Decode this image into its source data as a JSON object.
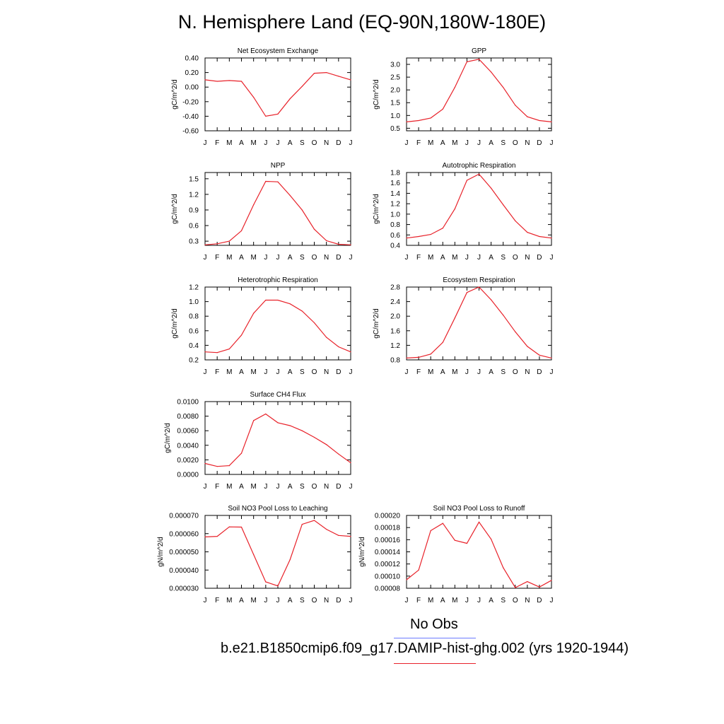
{
  "title": "N. Hemisphere Land (EQ-90N,180W-180E)",
  "colors": {
    "series_line": "#e8222a",
    "obs_line": "#6b7bff"
  },
  "legend": {
    "obs_label": "No Obs",
    "model_label": "b.e21.B1850cmip6.f09_g17.DAMIP-hist-ghg.002 (yrs 1920-1944)"
  },
  "chart_data": [
    {
      "type": "line",
      "title": "Net Ecosystem Exchange",
      "xlabel": "",
      "ylabel": "gC/m^2/d",
      "categories": [
        "J",
        "F",
        "M",
        "A",
        "M",
        "J",
        "J",
        "A",
        "S",
        "O",
        "N",
        "D",
        "J"
      ],
      "values": [
        0.1,
        0.08,
        0.09,
        0.08,
        -0.14,
        -0.4,
        -0.37,
        -0.16,
        0.01,
        0.19,
        0.2,
        0.15,
        0.1
      ],
      "ylim": [
        -0.6,
        0.4
      ],
      "yticks": [
        "0.40",
        "0.20",
        "0.00",
        "-0.20",
        "-0.40",
        "-0.60"
      ],
      "ytick_values": [
        0.4,
        0.2,
        0,
        -0.2,
        -0.4,
        -0.6
      ]
    },
    {
      "type": "line",
      "title": "GPP",
      "xlabel": "",
      "ylabel": "gC/m^2/d",
      "categories": [
        "J",
        "F",
        "M",
        "A",
        "M",
        "J",
        "J",
        "A",
        "S",
        "O",
        "N",
        "D",
        "J"
      ],
      "values": [
        0.75,
        0.8,
        0.9,
        1.25,
        2.1,
        3.1,
        3.2,
        2.7,
        2.1,
        1.4,
        0.95,
        0.8,
        0.75
      ],
      "ylim": [
        0.4,
        3.25
      ],
      "yticks": [
        "3.0",
        "2.5",
        "2.0",
        "1.5",
        "1.0",
        "0.5"
      ],
      "ytick_values": [
        3.0,
        2.5,
        2.0,
        1.5,
        1.0,
        0.5
      ]
    },
    {
      "type": "line",
      "title": "NPP",
      "xlabel": "",
      "ylabel": "gC/m^2/d",
      "categories": [
        "J",
        "F",
        "M",
        "A",
        "M",
        "J",
        "J",
        "A",
        "S",
        "O",
        "N",
        "D",
        "J"
      ],
      "values": [
        0.23,
        0.25,
        0.3,
        0.5,
        1.0,
        1.45,
        1.44,
        1.18,
        0.9,
        0.53,
        0.31,
        0.24,
        0.23
      ],
      "ylim": [
        0.22,
        1.62
      ],
      "yticks": [
        "1.5",
        "1.2",
        "0.9",
        "0.6",
        "0.3"
      ],
      "ytick_values": [
        1.5,
        1.2,
        0.9,
        0.6,
        0.3
      ]
    },
    {
      "type": "line",
      "title": "Autotrophic Respiration",
      "xlabel": "",
      "ylabel": "gC/m^2/d",
      "categories": [
        "J",
        "F",
        "M",
        "A",
        "M",
        "J",
        "J",
        "A",
        "S",
        "O",
        "N",
        "D",
        "J"
      ],
      "values": [
        0.54,
        0.57,
        0.61,
        0.73,
        1.1,
        1.65,
        1.77,
        1.5,
        1.18,
        0.87,
        0.65,
        0.57,
        0.54
      ],
      "ylim": [
        0.4,
        1.8
      ],
      "yticks": [
        "1.8",
        "1.6",
        "1.4",
        "1.2",
        "1.0",
        "0.8",
        "0.6",
        "0.4"
      ],
      "ytick_values": [
        1.8,
        1.6,
        1.4,
        1.2,
        1.0,
        0.8,
        0.6,
        0.4
      ]
    },
    {
      "type": "line",
      "title": "Heterotrophic Respiration",
      "xlabel": "",
      "ylabel": "gC/m^2/d",
      "categories": [
        "J",
        "F",
        "M",
        "A",
        "M",
        "J",
        "J",
        "A",
        "S",
        "O",
        "N",
        "D",
        "J"
      ],
      "values": [
        0.31,
        0.3,
        0.35,
        0.54,
        0.84,
        1.02,
        1.02,
        0.97,
        0.87,
        0.71,
        0.51,
        0.38,
        0.31
      ],
      "ylim": [
        0.2,
        1.2
      ],
      "yticks": [
        "1.2",
        "1.0",
        "0.8",
        "0.6",
        "0.4",
        "0.2"
      ],
      "ytick_values": [
        1.2,
        1.0,
        0.8,
        0.6,
        0.4,
        0.2
      ]
    },
    {
      "type": "line",
      "title": "Ecosystem Respiration",
      "xlabel": "",
      "ylabel": "gC/m^2/d",
      "categories": [
        "J",
        "F",
        "M",
        "A",
        "M",
        "J",
        "J",
        "A",
        "S",
        "O",
        "N",
        "D",
        "J"
      ],
      "values": [
        0.85,
        0.87,
        0.96,
        1.28,
        1.95,
        2.65,
        2.8,
        2.45,
        2.03,
        1.57,
        1.17,
        0.93,
        0.85
      ],
      "ylim": [
        0.8,
        2.8
      ],
      "yticks": [
        "2.8",
        "2.4",
        "2.0",
        "1.6",
        "1.2",
        "0.8"
      ],
      "ytick_values": [
        2.8,
        2.4,
        2.0,
        1.6,
        1.2,
        0.8
      ]
    },
    {
      "type": "line",
      "title": "Surface CH4 Flux",
      "xlabel": "",
      "ylabel": "gC/m^2/d",
      "categories": [
        "J",
        "F",
        "M",
        "A",
        "M",
        "J",
        "J",
        "A",
        "S",
        "O",
        "N",
        "D",
        "J"
      ],
      "values": [
        0.0015,
        0.0011,
        0.0012,
        0.0029,
        0.0074,
        0.0083,
        0.0071,
        0.0067,
        0.006,
        0.0051,
        0.0041,
        0.0028,
        0.0016
      ],
      "ylim": [
        0,
        0.01
      ],
      "yticks": [
        "0.0100",
        "0.0080",
        "0.0060",
        "0.0040",
        "0.0020",
        "0.0000"
      ],
      "ytick_values": [
        0.01,
        0.008,
        0.006,
        0.004,
        0.002,
        0
      ]
    },
    {
      "type": "line",
      "title": "Soil NO3 Pool Loss to Leaching",
      "xlabel": "",
      "ylabel": "gN/m^2/d",
      "categories": [
        "J",
        "F",
        "M",
        "A",
        "M",
        "J",
        "J",
        "A",
        "S",
        "O",
        "N",
        "D",
        "J"
      ],
      "values": [
        5.82e-05,
        5.85e-05,
        6.37e-05,
        6.36e-05,
        4.85e-05,
        3.35e-05,
        3.13e-05,
        4.57e-05,
        6.51e-05,
        6.73e-05,
        6.24e-05,
        5.9e-05,
        5.85e-05
      ],
      "ylim": [
        3e-05,
        7e-05
      ],
      "yticks": [
        "0.000070",
        "0.000060",
        "0.000050",
        "0.000040",
        "0.000030"
      ],
      "ytick_values": [
        7e-05,
        6e-05,
        5e-05,
        4e-05,
        3e-05
      ]
    },
    {
      "type": "line",
      "title": "Soil NO3 Pool Loss to Runoff",
      "xlabel": "",
      "ylabel": "gN/m^2/d",
      "categories": [
        "J",
        "F",
        "M",
        "A",
        "M",
        "J",
        "J",
        "A",
        "S",
        "O",
        "N",
        "D",
        "J"
      ],
      "values": [
        9.4e-05,
        0.00011,
        0.000175,
        0.000187,
        0.000159,
        0.000154,
        0.000189,
        0.000161,
        0.000114,
        8.1e-05,
        9.1e-05,
        8.2e-05,
        9.3e-05
      ],
      "ylim": [
        8e-05,
        0.0002
      ],
      "yticks": [
        "0.00020",
        "0.00018",
        "0.00016",
        "0.00014",
        "0.00012",
        "0.00010",
        "0.00008"
      ],
      "ytick_values": [
        0.0002,
        0.00018,
        0.00016,
        0.00014,
        0.00012,
        0.0001,
        8e-05
      ]
    }
  ]
}
